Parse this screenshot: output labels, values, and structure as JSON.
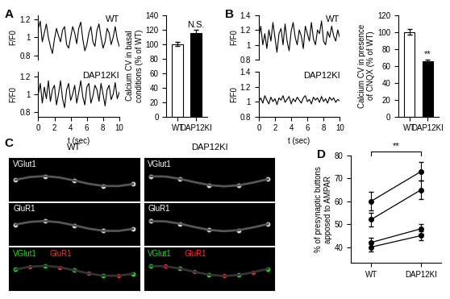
{
  "chart_data": [
    {
      "type": "line",
      "panel": "A",
      "title": "WT",
      "ylabel": "F/F0",
      "tick_labels": "y",
      "color": "#000000",
      "x": [
        0,
        0.25,
        0.5,
        0.75,
        1,
        1.25,
        1.5,
        1.75,
        2,
        2.25,
        2.5,
        2.75,
        3,
        3.25,
        3.5,
        3.75,
        4,
        4.25,
        4.5,
        4.75,
        5,
        5.25,
        5.5,
        5.75,
        6,
        6.25,
        6.5,
        6.75,
        7,
        7.25,
        7.5,
        7.75,
        8,
        8.25,
        8.5,
        8.75,
        9,
        9.25,
        9.5,
        9.75,
        10
      ],
      "values": [
        1.1,
        1.18,
        0.95,
        1.05,
        1.15,
        1.0,
        0.9,
        0.82,
        0.98,
        1.1,
        1.02,
        0.95,
        1.08,
        1.12,
        0.92,
        0.88,
        1.0,
        1.12,
        1.05,
        0.93,
        1.1,
        1.17,
        0.98,
        0.85,
        0.92,
        1.05,
        1.12,
        0.95,
        0.9,
        1.08,
        1.15,
        1.0,
        0.88,
        0.95,
        1.1,
        1.05,
        0.92,
        1.0,
        1.12,
        0.98,
        0.9
      ],
      "xlim": [
        0,
        10
      ],
      "ylim": [
        0.75,
        1.25
      ],
      "yticks": [
        0.8,
        1,
        1.2
      ]
    },
    {
      "type": "line",
      "title": "DAP12KI",
      "ylabel": "F/F0",
      "xlabel": "t (sec)",
      "color": "#000000",
      "x": [
        0,
        0.25,
        0.5,
        0.75,
        1,
        1.25,
        1.5,
        1.75,
        2,
        2.25,
        2.5,
        2.75,
        3,
        3.25,
        3.5,
        3.75,
        4,
        4.25,
        4.5,
        4.75,
        5,
        5.25,
        5.5,
        5.75,
        6,
        6.25,
        6.5,
        6.75,
        7,
        7.25,
        7.5,
        7.75,
        8,
        8.25,
        8.5,
        8.75,
        9,
        9.25,
        9.5,
        9.75,
        10
      ],
      "values": [
        1.0,
        1.12,
        0.9,
        1.08,
        0.95,
        1.15,
        0.92,
        1.05,
        1.1,
        0.88,
        1.0,
        1.15,
        0.95,
        0.85,
        1.05,
        1.12,
        0.93,
        1.0,
        1.1,
        0.9,
        1.02,
        1.15,
        0.97,
        0.88,
        1.08,
        1.12,
        0.9,
        0.98,
        1.1,
        1.05,
        0.92,
        1.12,
        1.0,
        0.87,
        1.05,
        1.1,
        0.94,
        1.0,
        1.13,
        0.95,
        1.02
      ],
      "xlim": [
        0,
        10
      ],
      "xticks": [
        0,
        2,
        4,
        6,
        8,
        10
      ],
      "ylim": [
        0.75,
        1.25
      ],
      "yticks": [
        0.8,
        1,
        1.2
      ]
    },
    {
      "type": "bar",
      "ylabel": "Calcium CV in basal\nconditions (% of WT)",
      "categories": [
        "WT",
        "DAP12KI"
      ],
      "values": [
        100,
        115
      ],
      "errors": [
        3,
        4
      ],
      "colors": [
        "#ffffff",
        "#000000"
      ],
      "annotation": "N.S.",
      "ylim": [
        0,
        140
      ],
      "yticks": [
        0,
        20,
        40,
        60,
        80,
        100,
        120,
        140
      ]
    },
    {
      "type": "line",
      "panel": "B",
      "title": "WT",
      "ylabel": "F/F0",
      "tick_labels": "y",
      "color": "#000000",
      "x": [
        0,
        0.25,
        0.5,
        0.75,
        1,
        1.25,
        1.5,
        1.75,
        2,
        2.25,
        2.5,
        2.75,
        3,
        3.25,
        3.5,
        3.75,
        4,
        4.25,
        4.5,
        4.75,
        5,
        5.25,
        5.5,
        5.75,
        6,
        6.25,
        6.5,
        6.75,
        7,
        7.25,
        7.5,
        7.75,
        8,
        8.25,
        8.5,
        8.75,
        9,
        9.25,
        9.5,
        9.75,
        10
      ],
      "values": [
        1.1,
        1.25,
        1.0,
        1.15,
        0.95,
        1.2,
        1.05,
        1.3,
        1.1,
        0.9,
        1.15,
        1.22,
        1.0,
        1.28,
        1.05,
        0.92,
        1.18,
        1.3,
        1.1,
        1.0,
        1.2,
        1.12,
        0.95,
        1.25,
        1.15,
        1.05,
        1.3,
        1.08,
        1.0,
        1.2,
        1.15,
        1.32,
        1.05,
        1.0,
        1.18,
        1.1,
        1.25,
        1.12,
        1.05,
        1.2,
        1.1
      ],
      "xlim": [
        0,
        10
      ],
      "ylim": [
        0.8,
        1.4
      ],
      "yticks": [
        0.8,
        1,
        1.2,
        1.4
      ]
    },
    {
      "type": "line",
      "title": "DAP12KI",
      "ylabel": "F/F0",
      "xlabel": "t (sec)",
      "color": "#000000",
      "x": [
        0,
        0.25,
        0.5,
        0.75,
        1,
        1.25,
        1.5,
        1.75,
        2,
        2.25,
        2.5,
        2.75,
        3,
        3.25,
        3.5,
        3.75,
        4,
        4.25,
        4.5,
        4.75,
        5,
        5.25,
        5.5,
        5.75,
        6,
        6.25,
        6.5,
        6.75,
        7,
        7.25,
        7.5,
        7.75,
        8,
        8.25,
        8.5,
        8.75,
        9,
        9.25,
        9.5,
        9.75,
        10
      ],
      "values": [
        1.0,
        1.05,
        0.98,
        1.08,
        1.02,
        0.97,
        1.06,
        1.0,
        1.04,
        0.96,
        1.05,
        1.02,
        1.08,
        0.99,
        1.03,
        1.07,
        0.97,
        1.04,
        1.0,
        1.06,
        1.02,
        0.98,
        1.05,
        1.08,
        1.0,
        1.03,
        0.97,
        1.06,
        1.02,
        1.05,
        0.99,
        1.07,
        1.0,
        1.04,
        0.98,
        1.06,
        1.02,
        1.05,
        0.99,
        1.03,
        1.01
      ],
      "xlim": [
        0,
        10
      ],
      "xticks": [
        0,
        2,
        4,
        6,
        8,
        10
      ],
      "ylim": [
        0.8,
        1.4
      ],
      "yticks": [
        0.8,
        1,
        1.2,
        1.4
      ]
    },
    {
      "type": "bar",
      "ylabel": "Calcium CV in presence\nof CNQX (% of WT)",
      "categories": [
        "WT",
        "DAP12KI"
      ],
      "values": [
        100,
        65
      ],
      "errors": [
        3,
        2
      ],
      "colors": [
        "#ffffff",
        "#000000"
      ],
      "annotation": "**",
      "ylim": [
        0,
        120
      ],
      "yticks": [
        0,
        20,
        40,
        60,
        80,
        100,
        120
      ]
    },
    {
      "type": "image",
      "panel": "C",
      "categories": [
        "WT",
        "DAP12KI"
      ],
      "series": [
        {
          "name": "VGlut1",
          "color": "#22dd22"
        },
        {
          "name": "GluR1",
          "color": "#ff3030"
        }
      ]
    },
    {
      "type": "line",
      "panel": "D",
      "ylabel": "% of presynaptic buttons\napposed to AMPAR",
      "categories": [
        "WT",
        "DAP12KI"
      ],
      "marker": "o",
      "color": "#000000",
      "annotation": "**",
      "series": [
        {
          "values": [
            60,
            73
          ],
          "errors": [
            4,
            4
          ]
        },
        {
          "values": [
            52,
            65
          ],
          "errors": [
            3,
            4
          ]
        },
        {
          "values": [
            42,
            48
          ],
          "errors": [
            2,
            2
          ]
        },
        {
          "values": [
            40,
            45
          ],
          "errors": [
            2,
            2
          ]
        }
      ],
      "ylim": [
        33,
        80
      ],
      "yticks": [
        40,
        50,
        60,
        70,
        80
      ]
    }
  ]
}
